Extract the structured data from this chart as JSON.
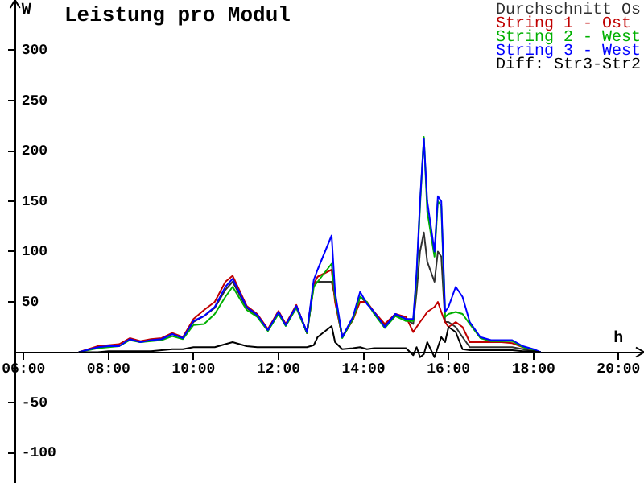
{
  "chart_data": {
    "type": "line",
    "title": "Leistung pro Modul",
    "xlabel": "h",
    "ylabel": "W",
    "x": [
      7.3,
      7.75,
      8,
      8.25,
      8.5,
      8.75,
      9,
      9.25,
      9.5,
      9.75,
      10,
      10.25,
      10.5,
      10.75,
      10.92,
      11.25,
      11.5,
      11.75,
      12,
      12.17,
      12.42,
      12.67,
      12.83,
      12.92,
      13.25,
      13.33,
      13.5,
      13.75,
      13.92,
      14.08,
      14.25,
      14.5,
      14.75,
      15,
      15.17,
      15.25,
      15.33,
      15.42,
      15.5,
      15.67,
      15.75,
      15.83,
      15.92,
      16,
      16.17,
      16.33,
      16.5,
      16.75,
      17,
      17.25,
      17.5,
      17.75,
      18,
      18.17
    ],
    "series": [
      {
        "name": "Durchschnitt Os",
        "color": "#303030",
        "values": [
          null,
          null,
          null,
          null,
          null,
          null,
          null,
          null,
          null,
          14,
          30,
          36,
          44,
          62,
          70,
          44,
          36,
          22,
          40,
          27,
          45,
          19,
          68,
          70,
          70,
          55,
          15,
          33,
          55,
          49,
          39,
          26,
          37,
          33,
          28,
          60,
          100,
          119,
          90,
          70,
          100,
          95,
          30,
          30,
          25,
          15,
          5,
          5,
          5,
          5,
          5,
          3,
          1,
          0
        ]
      },
      {
        "name": "String 1 - Ost",
        "color": "#c00000",
        "values": [
          0,
          6,
          7,
          8,
          14,
          11,
          13,
          14,
          19,
          15,
          33,
          42,
          50,
          70,
          76,
          46,
          38,
          23,
          41,
          28,
          47,
          19,
          68,
          75,
          82,
          50,
          15,
          32,
          50,
          50,
          40,
          28,
          38,
          35,
          20,
          25,
          30,
          35,
          40,
          45,
          50,
          40,
          30,
          25,
          30,
          25,
          10,
          10,
          10,
          10,
          9,
          5,
          2,
          0
        ]
      },
      {
        "name": "String 2 - West",
        "color": "#00b000",
        "values": [
          0,
          4,
          5,
          6,
          12,
          10,
          11,
          12,
          16,
          13,
          27,
          28,
          38,
          55,
          65,
          42,
          35,
          21,
          38,
          26,
          44,
          19,
          65,
          70,
          88,
          55,
          14,
          33,
          55,
          50,
          38,
          24,
          36,
          31,
          31,
          75,
          145,
          214,
          140,
          95,
          150,
          145,
          35,
          38,
          40,
          38,
          28,
          14,
          11,
          11,
          11,
          5,
          2,
          0
        ]
      },
      {
        "name": "String 3 - West",
        "color": "#0000ff",
        "values": [
          0,
          5,
          6,
          6,
          13,
          10,
          12,
          13,
          18,
          14,
          31,
          36,
          45,
          65,
          73,
          45,
          37,
          22,
          40,
          27,
          46,
          20,
          72,
          82,
          116,
          60,
          15,
          35,
          60,
          48,
          40,
          25,
          38,
          33,
          33,
          80,
          150,
          212,
          150,
          100,
          155,
          150,
          40,
          45,
          65,
          55,
          30,
          15,
          12,
          12,
          12,
          6,
          3,
          0
        ]
      },
      {
        "name": "Diff: Str3-Str2",
        "color": "#000000",
        "values": [
          0,
          0,
          1,
          1,
          1,
          1,
          1,
          2,
          3,
          3,
          5,
          5,
          5,
          8,
          10,
          6,
          5,
          5,
          5,
          5,
          5,
          5,
          7,
          15,
          26,
          10,
          3,
          4,
          5,
          3,
          4,
          4,
          4,
          4,
          -3,
          5,
          -5,
          -2,
          10,
          -5,
          5,
          15,
          10,
          25,
          20,
          3,
          2,
          2,
          2,
          2,
          2,
          1,
          1,
          0
        ]
      }
    ],
    "xlim": [
      5.8,
      20.6
    ],
    "xticks": [
      {
        "value": 6,
        "label": "06:00"
      },
      {
        "value": 8,
        "label": "08:00"
      },
      {
        "value": 10,
        "label": "10:00"
      },
      {
        "value": 12,
        "label": "12:00"
      },
      {
        "value": 14,
        "label": "14:00"
      },
      {
        "value": 16,
        "label": "16:00"
      },
      {
        "value": 18,
        "label": "18:00"
      },
      {
        "value": 20,
        "label": "20:00"
      }
    ],
    "ylim": [
      -130,
      350
    ],
    "yticks": [
      -100,
      -50,
      50,
      100,
      150,
      200,
      250,
      300
    ],
    "grid": false,
    "legend": "top right",
    "marker": "none",
    "line_style": "solid"
  }
}
